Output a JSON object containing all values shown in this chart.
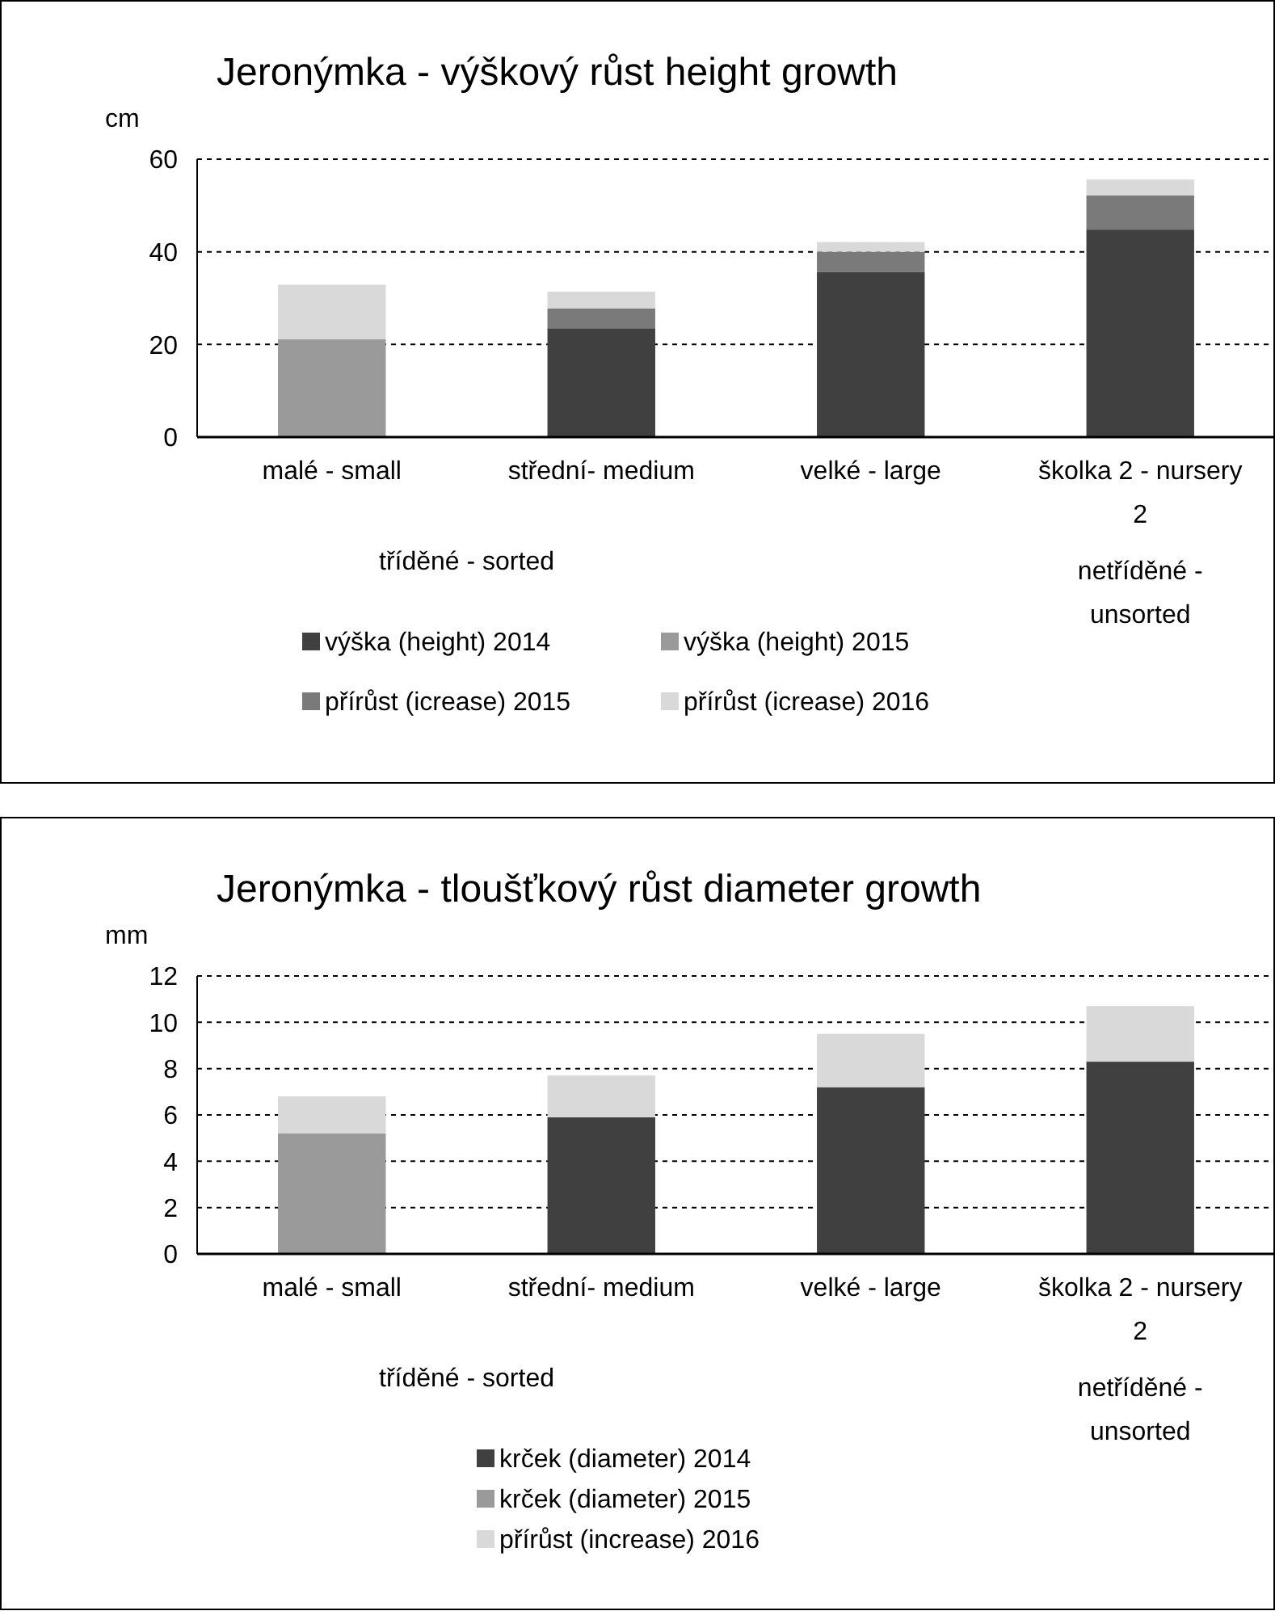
{
  "chart_data": [
    {
      "type": "bar",
      "title": "Jeronýmka - výškový růst height growth",
      "ylabel": "cm",
      "stacked": true,
      "categories": [
        "malé - small",
        "střední- medium",
        "velké - large",
        "školka 2 - nursery 2"
      ],
      "ylim": [
        0,
        60
      ],
      "yticks": [
        0,
        20,
        40,
        60
      ],
      "grid": "y",
      "legend": "bottom",
      "annotations": [
        "tříděné - sorted",
        "netříděné - unsorted"
      ],
      "series": [
        {
          "name": "výška (height) 2014",
          "color": "#404040",
          "values": [
            null,
            23.5,
            35.6,
            44.8
          ]
        },
        {
          "name": "výška (height) 2015",
          "color": "#9a9a9a",
          "values": [
            21.1,
            null,
            null,
            null
          ]
        },
        {
          "name": "přírůst (icrease) 2015",
          "color": "#7a7a7a",
          "values": [
            null,
            4.3,
            4.4,
            7.4
          ]
        },
        {
          "name": "přírůst (icrease) 2016",
          "color": "#d9d9d9",
          "values": [
            11.8,
            3.6,
            2.1,
            3.4
          ]
        }
      ]
    },
    {
      "type": "bar",
      "title": "Jeronýmka - tloušťkový růst diameter growth",
      "ylabel": "mm",
      "stacked": true,
      "categories": [
        "malé - small",
        "střední- medium",
        "velké - large",
        "školka 2 - nursery 2"
      ],
      "ylim": [
        0,
        12
      ],
      "yticks": [
        0,
        2,
        4,
        6,
        8,
        10,
        12
      ],
      "grid": "y",
      "legend": "bottom",
      "annotations": [
        "tříděné - sorted",
        "netříděné - unsorted"
      ],
      "series": [
        {
          "name": "krček (diameter) 2014",
          "color": "#404040",
          "values": [
            null,
            5.9,
            7.2,
            8.3
          ]
        },
        {
          "name": "krček (diameter) 2015",
          "color": "#9a9a9a",
          "values": [
            5.2,
            null,
            null,
            null
          ]
        },
        {
          "name": "přírůst (increase) 2016",
          "color": "#d9d9d9",
          "values": [
            1.6,
            1.8,
            2.3,
            2.4
          ]
        }
      ]
    }
  ]
}
